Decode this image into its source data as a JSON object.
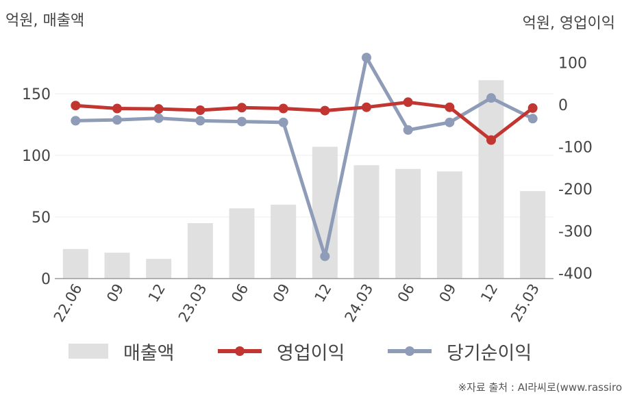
{
  "chart_data": {
    "type": "bar",
    "categories": [
      "22.06",
      "09",
      "12",
      "23.03",
      "06",
      "09",
      "12",
      "24.03",
      "06",
      "09",
      "12",
      "25.03"
    ],
    "left_axis_title": "억원, 매출액",
    "right_axis_title": "억원, 영업이익",
    "left_axis": {
      "ylim": [
        0,
        180
      ],
      "ticks": [
        0,
        50,
        100,
        150
      ]
    },
    "right_axis": {
      "ylim": [
        -400,
        150
      ],
      "ticks": [
        -400,
        -300,
        -200,
        -100,
        0,
        100
      ]
    },
    "grid": true,
    "series": [
      {
        "name": "매출액",
        "kind": "bar",
        "axis": "left",
        "color": "#e0e0e0",
        "values": [
          24,
          21,
          16,
          45,
          57,
          60,
          107,
          92,
          89,
          87,
          161,
          71
        ]
      },
      {
        "name": "영업이익",
        "kind": "line",
        "axis": "right",
        "color": "#c23632",
        "values": [
          -2,
          -9,
          -10,
          -13,
          -7,
          -9,
          -14,
          -6,
          6,
          -6,
          -84,
          -8
        ]
      },
      {
        "name": "당기순이익",
        "kind": "line",
        "axis": "right",
        "color": "#8e9cb8",
        "values": [
          -38,
          -36,
          -32,
          -38,
          -40,
          -42,
          -360,
          112,
          -60,
          -42,
          16,
          -33
        ]
      }
    ],
    "source": "※자료 출처 : AI라씨로(www.rassiro"
  }
}
